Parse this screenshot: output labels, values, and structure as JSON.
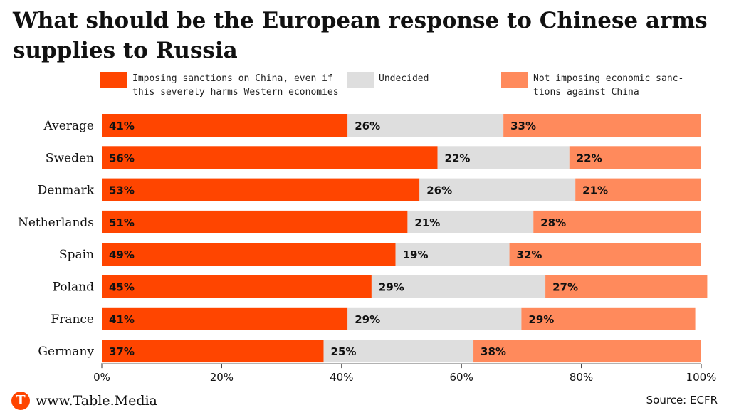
{
  "title": "What should be the European response to Chinese arms supplies to Russia",
  "legend": [
    {
      "label": "Imposing sanctions on China, even if\nthis severely harms Western economies",
      "color": "#ff4500"
    },
    {
      "label": "Undecided",
      "color": "#dedede"
    },
    {
      "label": "Not imposing economic sanc-\ntions against China",
      "color": "#ff8a5c"
    }
  ],
  "footer": {
    "brand": "www.Table.Media",
    "logo_letter": "T",
    "source": "Source: ECFR"
  },
  "chart_data": {
    "type": "bar",
    "orientation": "horizontal",
    "stacked": true,
    "categories": [
      "Average",
      "Sweden",
      "Denmark",
      "Netherlands",
      "Spain",
      "Poland",
      "France",
      "Germany"
    ],
    "series": [
      {
        "name": "Imposing sanctions on China, even if this severely harms Western economies",
        "values": [
          41,
          56,
          53,
          51,
          49,
          45,
          41,
          37
        ],
        "color": "#ff4500"
      },
      {
        "name": "Undecided",
        "values": [
          26,
          22,
          26,
          21,
          19,
          29,
          29,
          25
        ],
        "color": "#dedede"
      },
      {
        "name": "Not imposing economic sanctions against China",
        "values": [
          33,
          22,
          21,
          28,
          32,
          27,
          29,
          38
        ],
        "color": "#ff8a5c"
      }
    ],
    "xlim": [
      0,
      100
    ],
    "xticks": [
      "0%",
      "20%",
      "40%",
      "60%",
      "80%",
      "100%"
    ],
    "value_suffix": "%",
    "legend_position": "top"
  }
}
